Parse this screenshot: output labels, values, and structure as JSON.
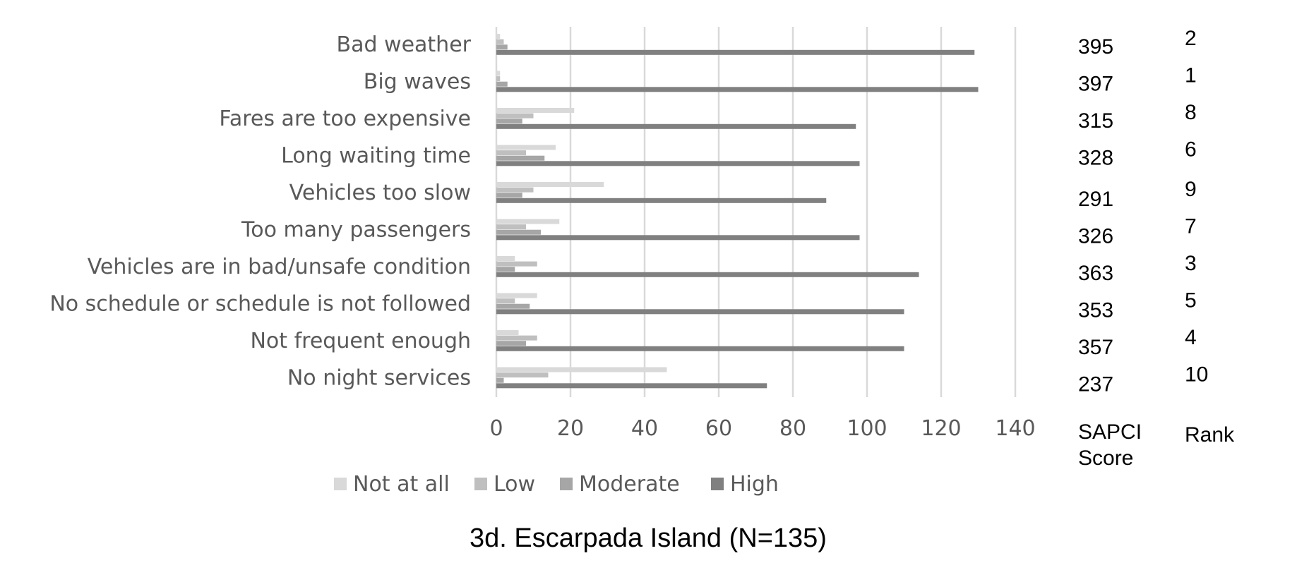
{
  "chart_data": {
    "type": "bar",
    "orientation": "horizontal",
    "title": "3d. Escarpada Island (N=135)",
    "categories": [
      "Bad weather",
      "Big waves",
      "Fares are too expensive",
      "Long waiting time",
      "Vehicles too slow",
      "Too many passengers",
      "Vehicles are in bad/unsafe condition",
      "No schedule or schedule is not followed",
      "Not frequent enough",
      "No night services"
    ],
    "series": [
      {
        "name": "Not at all",
        "color": "#d9d9d9",
        "values": [
          1,
          1,
          21,
          16,
          29,
          17,
          5,
          11,
          6,
          46
        ]
      },
      {
        "name": "Low",
        "color": "#bfbfbf",
        "values": [
          2,
          1,
          10,
          8,
          10,
          8,
          11,
          5,
          11,
          14
        ]
      },
      {
        "name": "Moderate",
        "color": "#a6a6a6",
        "values": [
          3,
          3,
          7,
          13,
          7,
          12,
          5,
          9,
          8,
          2
        ]
      },
      {
        "name": "High",
        "color": "#808080",
        "values": [
          129,
          130,
          97,
          98,
          89,
          98,
          114,
          110,
          110,
          73
        ]
      }
    ],
    "xlim": [
      0,
      140
    ],
    "xticks": [
      "0",
      "20",
      "40",
      "60",
      "80",
      "100",
      "120",
      "140"
    ],
    "grid": true,
    "legend_position": "bottom",
    "sapci_header": [
      "SAPCI",
      "Score"
    ],
    "sapci_scores": [
      "395",
      "397",
      "315",
      "328",
      "291",
      "326",
      "363",
      "353",
      "357",
      "237"
    ],
    "rank_header": "Rank",
    "ranks": [
      "2",
      "1",
      "8",
      "6",
      "9",
      "7",
      "3",
      "5",
      "4",
      "10"
    ]
  }
}
